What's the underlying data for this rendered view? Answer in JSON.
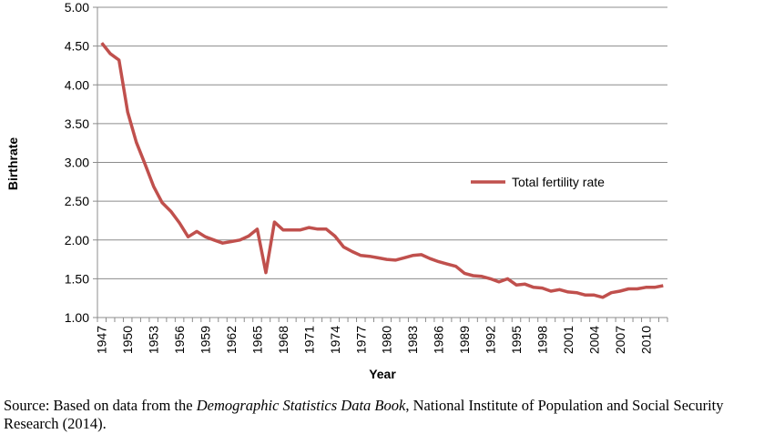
{
  "chart_data": {
    "type": "line",
    "title": "",
    "xlabel": "Year",
    "ylabel": "Birthrate",
    "ylim": [
      1.0,
      5.0
    ],
    "yticks": [
      "1.00",
      "1.50",
      "2.00",
      "2.50",
      "3.00",
      "3.50",
      "4.00",
      "4.50",
      "5.00"
    ],
    "xtick_labels": [
      "1947",
      "1950",
      "1953",
      "1956",
      "1959",
      "1962",
      "1965",
      "1968",
      "1971",
      "1974",
      "1977",
      "1980",
      "1983",
      "1986",
      "1989",
      "1992",
      "1995",
      "1998",
      "2001",
      "2004",
      "2007",
      "2010"
    ],
    "grid": true,
    "legend_position": "right-middle",
    "x": [
      1947,
      1948,
      1949,
      1950,
      1951,
      1952,
      1953,
      1954,
      1955,
      1956,
      1957,
      1958,
      1959,
      1960,
      1961,
      1962,
      1963,
      1964,
      1965,
      1966,
      1967,
      1968,
      1969,
      1970,
      1971,
      1972,
      1973,
      1974,
      1975,
      1976,
      1977,
      1978,
      1979,
      1980,
      1981,
      1982,
      1983,
      1984,
      1985,
      1986,
      1987,
      1988,
      1989,
      1990,
      1991,
      1992,
      1993,
      1994,
      1995,
      1996,
      1997,
      1998,
      1999,
      2000,
      2001,
      2002,
      2003,
      2004,
      2005,
      2006,
      2007,
      2008,
      2009,
      2010,
      2011,
      2012
    ],
    "series": [
      {
        "name": "Total fertility rate",
        "color": "#c0504d",
        "values": [
          4.54,
          4.4,
          4.32,
          3.65,
          3.26,
          2.98,
          2.69,
          2.48,
          2.37,
          2.22,
          2.04,
          2.11,
          2.04,
          2.0,
          1.96,
          1.98,
          2.0,
          2.05,
          2.14,
          1.58,
          2.23,
          2.13,
          2.13,
          2.13,
          2.16,
          2.14,
          2.14,
          2.05,
          1.91,
          1.85,
          1.8,
          1.79,
          1.77,
          1.75,
          1.74,
          1.77,
          1.8,
          1.81,
          1.76,
          1.72,
          1.69,
          1.66,
          1.57,
          1.54,
          1.53,
          1.5,
          1.46,
          1.5,
          1.42,
          1.43,
          1.39,
          1.38,
          1.34,
          1.36,
          1.33,
          1.32,
          1.29,
          1.29,
          1.26,
          1.32,
          1.34,
          1.37,
          1.37,
          1.39,
          1.39,
          1.41
        ]
      }
    ]
  },
  "source": {
    "prefix": "Source: Based on data from the ",
    "title": "Demographic Statistics Data Book",
    "suffix": ", National Institute of Population and Social Security Research (2014)."
  }
}
